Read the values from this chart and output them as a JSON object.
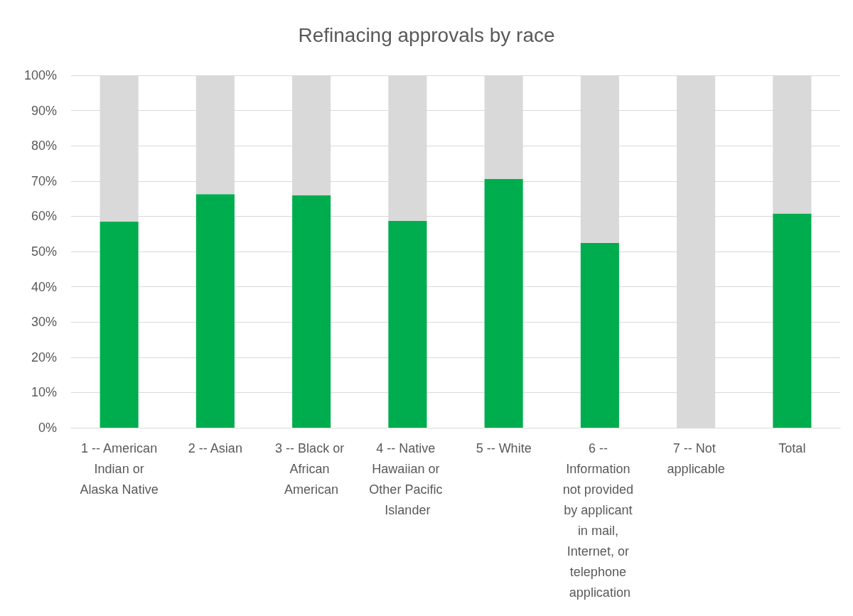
{
  "chart_data": {
    "type": "bar",
    "title": "Refinacing approvals by race",
    "categories": [
      "1 -- American Indian or Alaska Native",
      "2 -- Asian",
      "3 -- Black or African American",
      "4 -- Native Hawaiian or Other Pacific Islander",
      "5 -- White",
      "6 -- Information not provided by applicant in mail, Internet, or telephone application",
      "7 -- Not applicable",
      "Total"
    ],
    "series": [
      {
        "color": "#00ad4e",
        "values": [
          58.5,
          66.3,
          66.0,
          58.7,
          70.6,
          52.4,
          0,
          60.8
        ]
      },
      {
        "color": "#d9d9d9",
        "values": [
          41.5,
          33.7,
          34.0,
          41.3,
          29.4,
          47.6,
          100,
          39.2
        ]
      }
    ],
    "stacked": true,
    "ylim": [
      0,
      100
    ],
    "yticks": [
      {
        "value": 0,
        "label": "0%"
      },
      {
        "value": 10,
        "label": "10%"
      },
      {
        "value": 20,
        "label": "20%"
      },
      {
        "value": 30,
        "label": "30%"
      },
      {
        "value": 40,
        "label": "40%"
      },
      {
        "value": 50,
        "label": "50%"
      },
      {
        "value": 60,
        "label": "60%"
      },
      {
        "value": 70,
        "label": "70%"
      },
      {
        "value": 80,
        "label": "80%"
      },
      {
        "value": 90,
        "label": "90%"
      },
      {
        "value": 100,
        "label": "100%"
      }
    ],
    "grid": "y"
  }
}
